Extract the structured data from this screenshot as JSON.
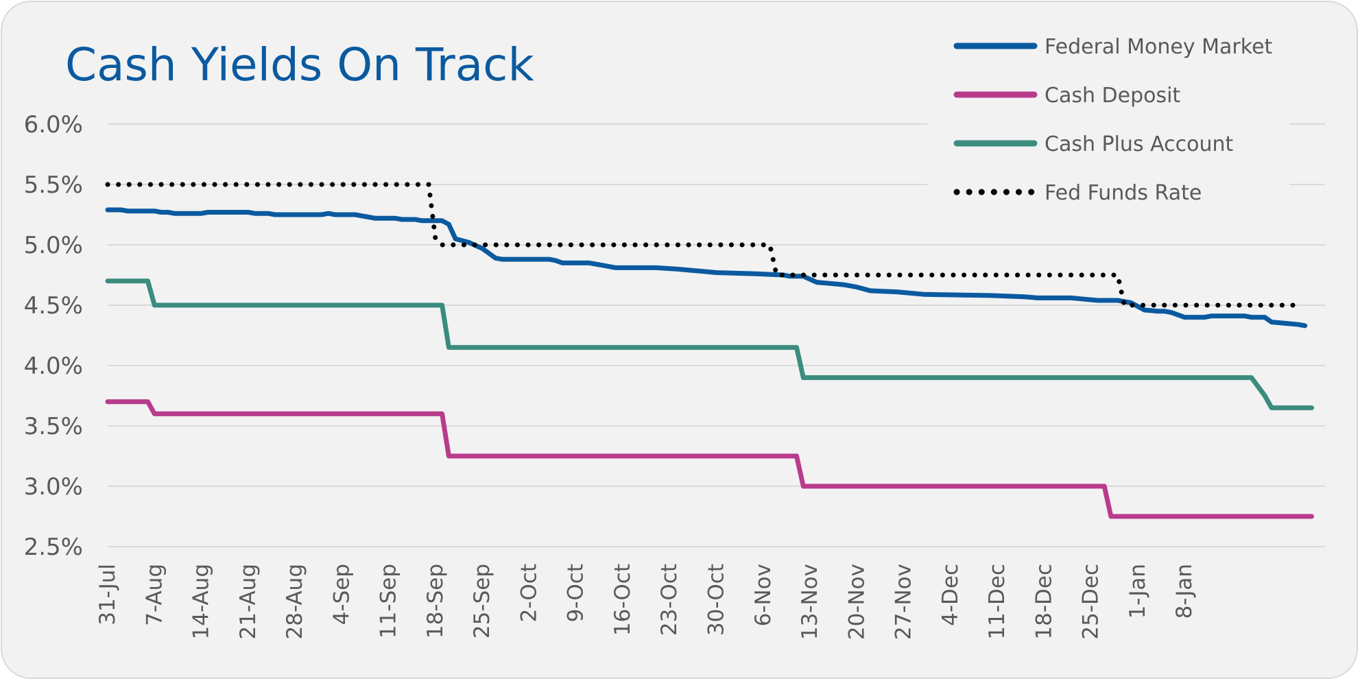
{
  "chart_data": {
    "type": "line",
    "title": "Cash Yields On Track",
    "xlabel": "",
    "ylabel": "",
    "ylim": [
      2.5,
      6.0
    ],
    "y_ticks": [
      "6.0%",
      "5.5%",
      "5.0%",
      "4.5%",
      "4.0%",
      "3.5%",
      "3.0%",
      "2.5%"
    ],
    "x_ticks": [
      "31-Jul",
      "7-Aug",
      "14-Aug",
      "21-Aug",
      "28-Aug",
      "4-Sep",
      "11-Sep",
      "18-Sep",
      "25-Sep",
      "2-Oct",
      "9-Oct",
      "16-Oct",
      "23-Oct",
      "30-Oct",
      "6-Nov",
      "13-Nov",
      "20-Nov",
      "27-Nov",
      "4-Dec",
      "11-Dec",
      "18-Dec",
      "25-Dec",
      "1-Jan",
      "8-Jan"
    ],
    "x_unit": "day offset from 31-Jul",
    "grid": "horizontal",
    "legend_position": "top-right",
    "series": [
      {
        "name": "Federal Money Market",
        "color": "#0b5aa0",
        "style": "solid",
        "points": [
          [
            0,
            5.29
          ],
          [
            2,
            5.29
          ],
          [
            3,
            5.28
          ],
          [
            7,
            5.28
          ],
          [
            8,
            5.27
          ],
          [
            9,
            5.27
          ],
          [
            10,
            5.26
          ],
          [
            14,
            5.26
          ],
          [
            15,
            5.27
          ],
          [
            21,
            5.27
          ],
          [
            22,
            5.26
          ],
          [
            24,
            5.26
          ],
          [
            25,
            5.25
          ],
          [
            32,
            5.25
          ],
          [
            33,
            5.26
          ],
          [
            34,
            5.25
          ],
          [
            37,
            5.25
          ],
          [
            38,
            5.24
          ],
          [
            39,
            5.23
          ],
          [
            40,
            5.22
          ],
          [
            43,
            5.22
          ],
          [
            44,
            5.21
          ],
          [
            46,
            5.21
          ],
          [
            47,
            5.2
          ],
          [
            50,
            5.2
          ],
          [
            51,
            5.17
          ],
          [
            52,
            5.05
          ],
          [
            54,
            5.02
          ],
          [
            56,
            4.97
          ],
          [
            57,
            4.93
          ],
          [
            58,
            4.89
          ],
          [
            59,
            4.88
          ],
          [
            66,
            4.88
          ],
          [
            67,
            4.87
          ],
          [
            68,
            4.85
          ],
          [
            72,
            4.85
          ],
          [
            73,
            4.84
          ],
          [
            76,
            4.81
          ],
          [
            78,
            4.81
          ],
          [
            82,
            4.81
          ],
          [
            85,
            4.8
          ],
          [
            87,
            4.79
          ],
          [
            89,
            4.78
          ],
          [
            91,
            4.77
          ],
          [
            97,
            4.76
          ],
          [
            101,
            4.75
          ],
          [
            102,
            4.74
          ],
          [
            104,
            4.74
          ],
          [
            106,
            4.69
          ],
          [
            108,
            4.68
          ],
          [
            110,
            4.67
          ],
          [
            112,
            4.65
          ],
          [
            114,
            4.62
          ],
          [
            118,
            4.61
          ],
          [
            122,
            4.59
          ],
          [
            132,
            4.58
          ],
          [
            137,
            4.57
          ],
          [
            139,
            4.56
          ],
          [
            144,
            4.56
          ],
          [
            146,
            4.55
          ],
          [
            148,
            4.54
          ],
          [
            151,
            4.54
          ],
          [
            153,
            4.52
          ],
          [
            155,
            4.46
          ],
          [
            157,
            4.45
          ],
          [
            158,
            4.45
          ],
          [
            159,
            4.44
          ],
          [
            161,
            4.4
          ],
          [
            164,
            4.4
          ],
          [
            165,
            4.41
          ],
          [
            170,
            4.41
          ],
          [
            171,
            4.4
          ],
          [
            173,
            4.4
          ],
          [
            174,
            4.36
          ],
          [
            176,
            4.35
          ],
          [
            178,
            4.34
          ],
          [
            179,
            4.33
          ]
        ]
      },
      {
        "name": "Cash Deposit",
        "color": "#b83b8c",
        "style": "solid",
        "points": [
          [
            0,
            3.7
          ],
          [
            6,
            3.7
          ],
          [
            7,
            3.6
          ],
          [
            50,
            3.6
          ],
          [
            51,
            3.25
          ],
          [
            103,
            3.25
          ],
          [
            104,
            3.0
          ],
          [
            149,
            3.0
          ],
          [
            150,
            2.75
          ],
          [
            161,
            2.75
          ],
          [
            162,
            2.75
          ],
          [
            180,
            2.75
          ]
        ]
      },
      {
        "name": "Cash Plus Account",
        "color": "#3b8c7e",
        "style": "solid",
        "points": [
          [
            0,
            4.7
          ],
          [
            6,
            4.7
          ],
          [
            7,
            4.5
          ],
          [
            50,
            4.5
          ],
          [
            51,
            4.15
          ],
          [
            103,
            4.15
          ],
          [
            104,
            3.9
          ],
          [
            170,
            3.9
          ],
          [
            171,
            3.9
          ],
          [
            173,
            3.75
          ],
          [
            174,
            3.65
          ],
          [
            180,
            3.65
          ]
        ]
      },
      {
        "name": "Fed Funds Rate",
        "color": "#000000",
        "style": "dotted",
        "points": [
          [
            0,
            5.5
          ],
          [
            48,
            5.5
          ],
          [
            49,
            5.05
          ],
          [
            50,
            5.0
          ],
          [
            99,
            5.0
          ],
          [
            100,
            4.75
          ],
          [
            151,
            4.75
          ],
          [
            152,
            4.5
          ],
          [
            178,
            4.5
          ]
        ]
      }
    ]
  }
}
